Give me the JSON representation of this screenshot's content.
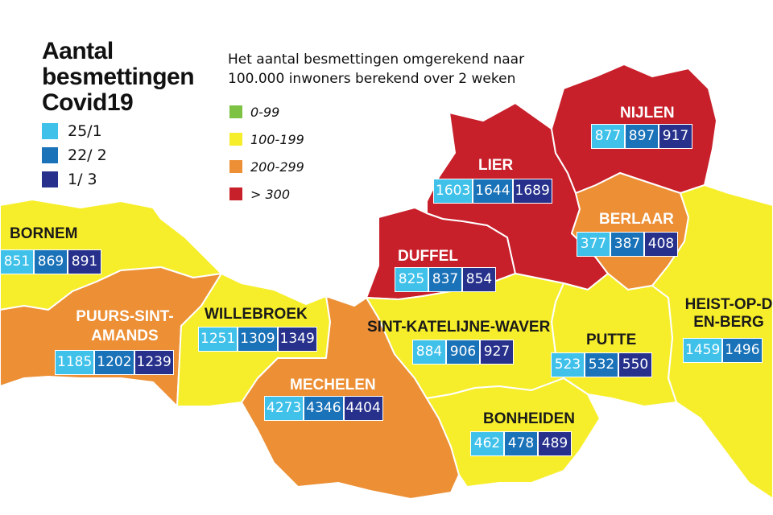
{
  "legend": {
    "title": "Aantal besmettingen Covid19",
    "series": [
      {
        "label": "25/1",
        "color": "#3fc1ea"
      },
      {
        "label": "22/ 2",
        "color": "#1a72b8"
      },
      {
        "label": "1/ 3",
        "color": "#27318c"
      }
    ]
  },
  "rate_legend": {
    "title": "Het aantal besmettingen omgerekend naar 100.000 inwoners berekend over 2 weken",
    "classes": [
      {
        "label": "0-99",
        "color": "#7dc242"
      },
      {
        "label": "100-199",
        "color": "#f7ee2b"
      },
      {
        "label": "200-299",
        "color": "#ec8f35"
      },
      {
        "label": "> 300",
        "color": "#c8202b"
      }
    ]
  },
  "municipalities": [
    {
      "name": "BORNEM",
      "category": "100-199",
      "values": [
        "851",
        "869",
        "891"
      ]
    },
    {
      "name": "PUURS-SINT-AMANDS",
      "category": "200-299",
      "values": [
        "1185",
        "1202",
        "1239"
      ]
    },
    {
      "name": "WILLEBROEK",
      "category": "100-199",
      "values": [
        "1251",
        "1309",
        "1349"
      ]
    },
    {
      "name": "MECHELEN",
      "category": "200-299",
      "values": [
        "4273",
        "4346",
        "4404"
      ]
    },
    {
      "name": "LIER",
      "category": "> 300",
      "values": [
        "1603",
        "1644",
        "1689"
      ]
    },
    {
      "name": "DUFFEL",
      "category": "> 300",
      "values": [
        "825",
        "837",
        "854"
      ]
    },
    {
      "name": "NIJLEN",
      "category": "> 300",
      "values": [
        "877",
        "897",
        "917"
      ]
    },
    {
      "name": "BERLAAR",
      "category": "200-299",
      "values": [
        "377",
        "387",
        "408"
      ]
    },
    {
      "name": "SINT-KATELIJNE-WAVER",
      "category": "100-199",
      "values": [
        "884",
        "906",
        "927"
      ]
    },
    {
      "name": "PUTTE",
      "category": "100-199",
      "values": [
        "523",
        "532",
        "550"
      ]
    },
    {
      "name": "HEIST-OP-DEN-BERG",
      "category": "100-199",
      "values": [
        "1459",
        "1496",
        ""
      ]
    },
    {
      "name": "BONHEIDEN",
      "category": "100-199",
      "values": [
        "462",
        "478",
        "489"
      ]
    }
  ]
}
